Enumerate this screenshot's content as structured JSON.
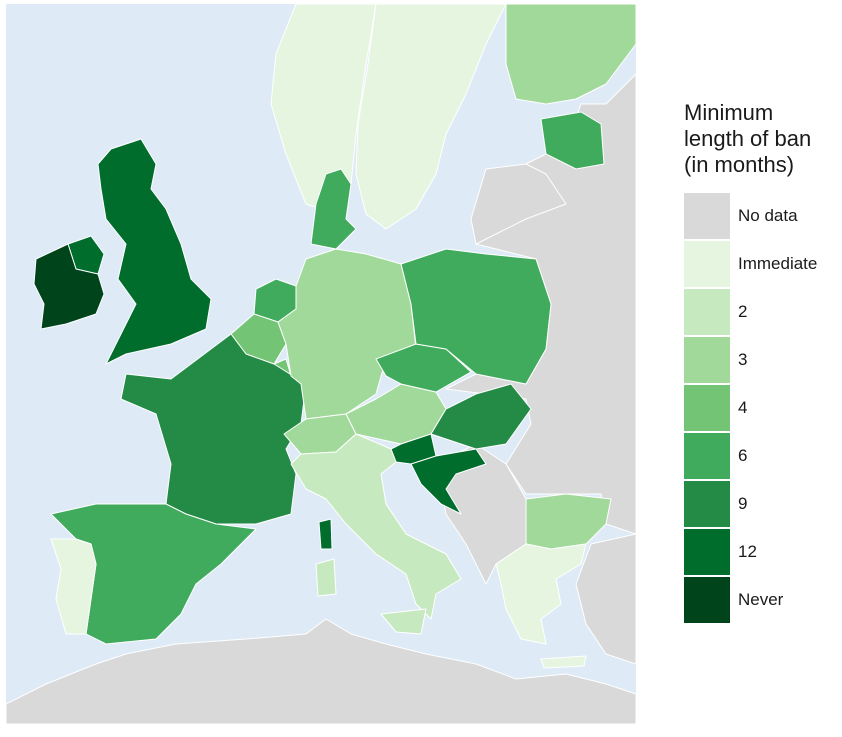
{
  "legend": {
    "title_lines": [
      "Minimum",
      "length of ban",
      "(in months)"
    ],
    "items": [
      {
        "label": "No data",
        "color": "#d9d9d9"
      },
      {
        "label": "Immediate",
        "color": "#e5f5e0"
      },
      {
        "label": "2",
        "color": "#c7e9c0"
      },
      {
        "label": "3",
        "color": "#a1d99b"
      },
      {
        "label": "4",
        "color": "#74c476"
      },
      {
        "label": "6",
        "color": "#41ab5d"
      },
      {
        "label": "9",
        "color": "#238b45"
      },
      {
        "label": "12",
        "color": "#006d2c"
      },
      {
        "label": "Never",
        "color": "#00441b"
      }
    ]
  },
  "map": {
    "sea_color": "#deebf7",
    "border_color": "#ffffff",
    "regions": [
      {
        "name": "ireland",
        "category": "Never"
      },
      {
        "name": "northern-ireland",
        "category": "12"
      },
      {
        "name": "great-britain",
        "category": "12"
      },
      {
        "name": "france",
        "category": "9"
      },
      {
        "name": "spain",
        "category": "6"
      },
      {
        "name": "portugal",
        "category": "Immediate"
      },
      {
        "name": "belgium",
        "category": "4"
      },
      {
        "name": "netherlands",
        "category": "6"
      },
      {
        "name": "luxembourg",
        "category": "4"
      },
      {
        "name": "germany",
        "category": "3"
      },
      {
        "name": "denmark",
        "category": "6"
      },
      {
        "name": "norway",
        "category": "Immediate"
      },
      {
        "name": "sweden",
        "category": "Immediate"
      },
      {
        "name": "finland",
        "category": "3"
      },
      {
        "name": "estonia",
        "category": "6"
      },
      {
        "name": "poland",
        "category": "6"
      },
      {
        "name": "czechia",
        "category": "6"
      },
      {
        "name": "austria",
        "category": "3"
      },
      {
        "name": "switzerland",
        "category": "3"
      },
      {
        "name": "italy",
        "category": "2"
      },
      {
        "name": "sardinia",
        "category": "2"
      },
      {
        "name": "sicily",
        "category": "2"
      },
      {
        "name": "corsica",
        "category": "12"
      },
      {
        "name": "hungary",
        "category": "9"
      },
      {
        "name": "slovenia",
        "category": "12"
      },
      {
        "name": "croatia",
        "category": "12"
      },
      {
        "name": "bulgaria",
        "category": "3"
      },
      {
        "name": "greece",
        "category": "Immediate"
      },
      {
        "name": "eastern-europe",
        "category": "No data"
      },
      {
        "name": "balkans",
        "category": "No data"
      },
      {
        "name": "north-africa",
        "category": "No data"
      },
      {
        "name": "turkey",
        "category": "No data"
      },
      {
        "name": "lithuania-latvia",
        "category": "No data"
      }
    ]
  }
}
